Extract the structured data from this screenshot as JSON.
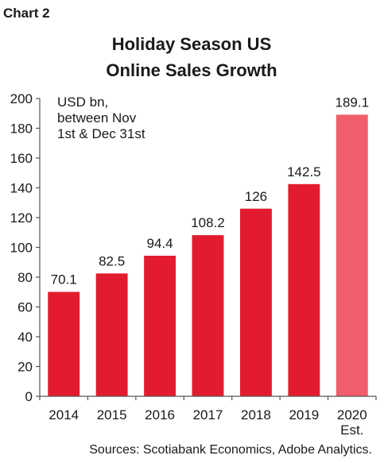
{
  "chart_label": "Chart 2",
  "source": "Sources: Scotiabank Economics, Adobe Analytics.",
  "colors": {
    "bar": "#e31b2f",
    "bar_estimate": "#f15d6b",
    "text": "#1a1a1a",
    "axis": "#555555"
  },
  "chart_data": {
    "type": "bar",
    "title": "Holiday Season US Online Sales Growth",
    "title_lines": [
      "Holiday Season US",
      "Online Sales Growth"
    ],
    "annotation_lines": [
      "USD bn,",
      "between Nov",
      "1st & Dec 31st"
    ],
    "categories": [
      "2014",
      "2015",
      "2016",
      "2017",
      "2018",
      "2019",
      "2020"
    ],
    "category_sublabels": [
      "",
      "",
      "",
      "",
      "",
      "",
      "Est."
    ],
    "values": [
      70.1,
      82.5,
      94.4,
      108.2,
      126,
      142.5,
      189.1
    ],
    "value_labels": [
      "70.1",
      "82.5",
      "94.4",
      "108.2",
      "126",
      "142.5",
      "189.1"
    ],
    "estimate_index": 6,
    "ylim": [
      0,
      200
    ],
    "yticks": [
      0,
      20,
      40,
      60,
      80,
      100,
      120,
      140,
      160,
      180,
      200
    ],
    "xlabel": "",
    "ylabel": "",
    "grid": false,
    "legend": "none"
  }
}
